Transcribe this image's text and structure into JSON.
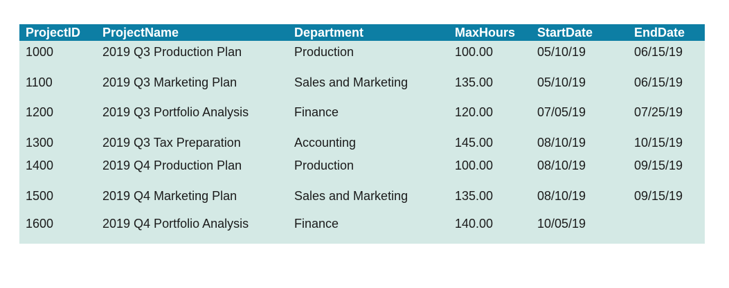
{
  "table": {
    "headers": [
      "ProjectID",
      "ProjectName",
      "Department",
      "MaxHours",
      "StartDate",
      "EndDate"
    ],
    "rows": [
      [
        "1000",
        "2019 Q3 Production Plan",
        "Production",
        "100.00",
        "05/10/19",
        "06/15/19"
      ],
      [
        "1100",
        "2019 Q3 Marketing Plan",
        "Sales and Marketing",
        "135.00",
        "05/10/19",
        "06/15/19"
      ],
      [
        "1200",
        "2019 Q3 Portfolio Analysis",
        "Finance",
        "120.00",
        "07/05/19",
        "07/25/19"
      ],
      [
        "1300",
        "2019 Q3 Tax Preparation",
        "Accounting",
        "145.00",
        "08/10/19",
        "10/15/19"
      ],
      [
        "1400",
        "2019 Q4 Production Plan",
        "Production",
        "100.00",
        "08/10/19",
        "09/15/19"
      ],
      [
        "1500",
        "2019 Q4 Marketing Plan",
        "Sales and Marketing",
        "135.00",
        "08/10/19",
        "09/15/19"
      ],
      [
        "1600",
        "2019 Q4 Portfolio Analysis",
        "Finance",
        "140.00",
        "10/05/19",
        ""
      ]
    ]
  },
  "colors": {
    "header_bg": "#0d7ea4",
    "header_text": "#ffffff",
    "body_bg": "#d4e9e5",
    "body_text": "#1a1a1a"
  }
}
